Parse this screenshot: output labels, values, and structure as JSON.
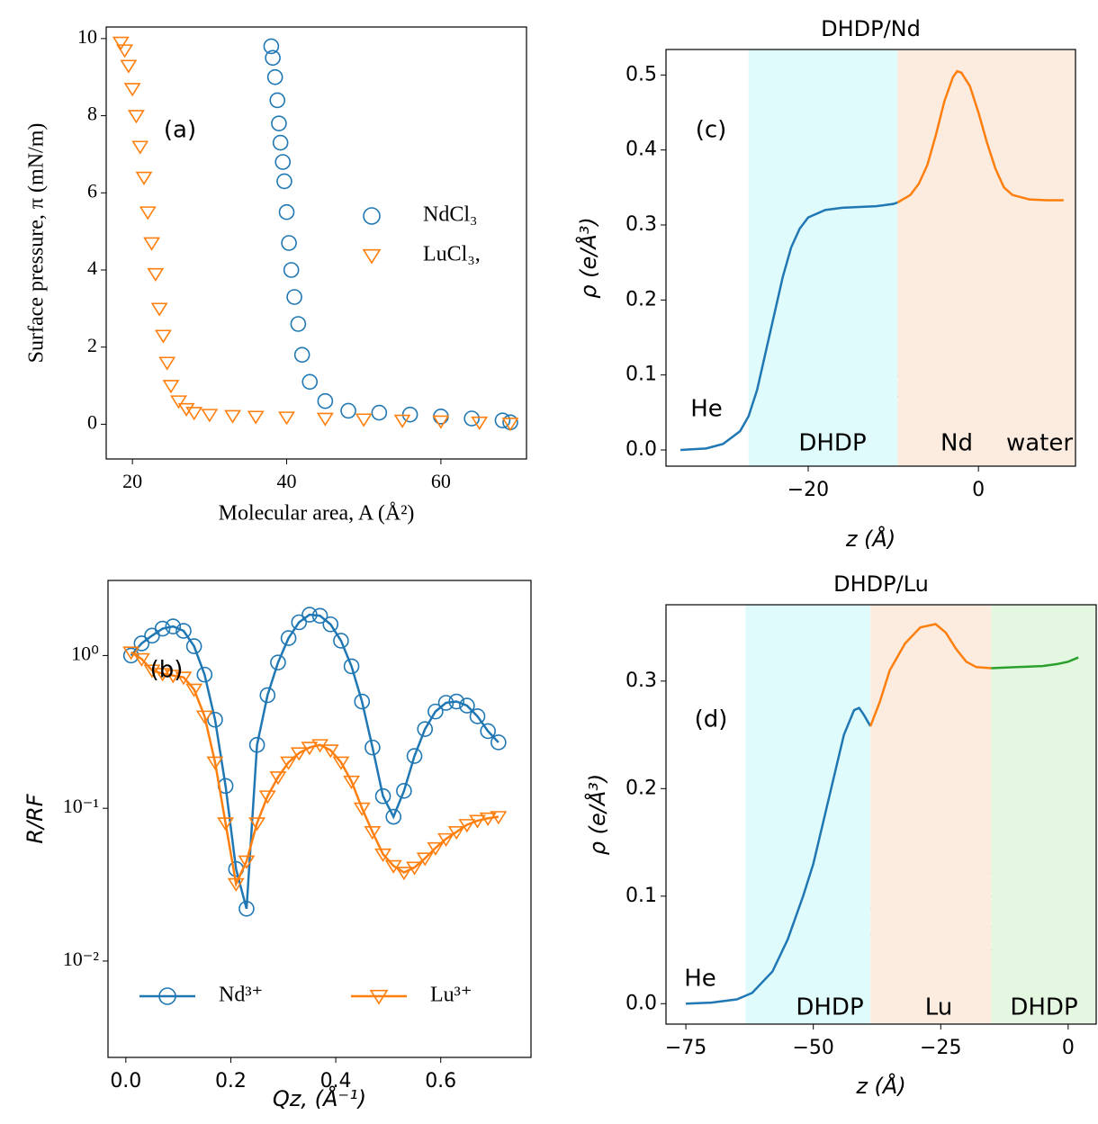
{
  "chart_data": [
    {
      "type": "scatter",
      "xlabel": "Molecular area, A (Å²)",
      "ylabel": "Surface pressure, π (mN/m)",
      "annotations": [
        "(a)"
      ],
      "xlim": [
        16.6,
        71.1
      ],
      "ylim": [
        -0.9,
        10.3
      ],
      "xticks": [
        20,
        40,
        60
      ],
      "yticks": [
        0,
        2,
        4,
        6,
        8,
        10
      ],
      "legend": "center right",
      "series": [
        {
          "name": "NdCl₃",
          "color": "#1f77b4",
          "marker": "o",
          "x": [
            38,
            38.2,
            38.5,
            38.8,
            39,
            39.2,
            39.5,
            39.7,
            40,
            40.3,
            40.6,
            41,
            41.5,
            42,
            43,
            45,
            48,
            52,
            56,
            60,
            64,
            68,
            69
          ],
          "values": [
            9.8,
            9.5,
            9,
            8.4,
            7.8,
            7.3,
            6.8,
            6.3,
            5.5,
            4.7,
            4,
            3.3,
            2.6,
            1.8,
            1.1,
            0.6,
            0.35,
            0.3,
            0.25,
            0.2,
            0.15,
            0.1,
            0.05
          ]
        },
        {
          "name": "LuCl₃,",
          "color": "#ff7f0e",
          "marker": "v",
          "x": [
            18.5,
            19,
            19.5,
            20,
            20.5,
            21,
            21.5,
            22,
            22.5,
            23,
            23.5,
            24,
            24.5,
            25,
            26,
            27,
            28,
            30,
            33,
            36,
            40,
            45,
            50,
            55,
            60,
            65,
            69
          ],
          "values": [
            9.9,
            9.7,
            9.3,
            8.7,
            8,
            7.2,
            6.4,
            5.5,
            4.7,
            3.9,
            3,
            2.3,
            1.6,
            1,
            0.6,
            0.4,
            0.3,
            0.25,
            0.22,
            0.2,
            0.18,
            0.15,
            0.13,
            0.1,
            0.08,
            0.05,
            0.02
          ]
        }
      ]
    },
    {
      "type": "line",
      "xlabel": "Qz, (Å⁻¹)",
      "ylabel": "R/RF",
      "annotations": [
        "(b)"
      ],
      "yscale": "log",
      "xlim": [
        -0.034,
        0.772
      ],
      "ylim": [
        0.00234,
        3.1
      ],
      "xticks": [
        {
          "value": 0,
          "label": "0.0"
        },
        0.2,
        0.4,
        0.6
      ],
      "yticks": [
        {
          "value": 0.01,
          "label": "10⁻²"
        },
        {
          "value": 0.1,
          "label": "10⁻¹"
        },
        {
          "value": 1,
          "label": "10⁰"
        }
      ],
      "legend": "lower center",
      "x": [
        0.01,
        0.03,
        0.05,
        0.07,
        0.09,
        0.11,
        0.13,
        0.15,
        0.17,
        0.19,
        0.21,
        0.23,
        0.25,
        0.27,
        0.29,
        0.31,
        0.33,
        0.35,
        0.37,
        0.39,
        0.41,
        0.43,
        0.45,
        0.47,
        0.49,
        0.51,
        0.53,
        0.55,
        0.57,
        0.59,
        0.61,
        0.63,
        0.65,
        0.67,
        0.69,
        0.71
      ],
      "series": [
        {
          "name": "Nd³⁺",
          "color": "#1f77b4",
          "marker": "o",
          "values": [
            1.0,
            1.2,
            1.35,
            1.5,
            1.55,
            1.45,
            1.15,
            0.75,
            0.38,
            0.14,
            0.04,
            0.022,
            0.26,
            0.55,
            0.9,
            1.3,
            1.65,
            1.85,
            1.82,
            1.6,
            1.25,
            0.85,
            0.5,
            0.25,
            0.12,
            0.088,
            0.13,
            0.22,
            0.33,
            0.43,
            0.49,
            0.5,
            0.47,
            0.4,
            0.32,
            0.27
          ]
        },
        {
          "name": "Lu³⁺",
          "color": "#ff7f0e",
          "marker": "v",
          "values": [
            1.05,
            0.95,
            0.8,
            0.76,
            0.74,
            0.72,
            0.6,
            0.4,
            0.2,
            0.08,
            0.032,
            0.045,
            0.08,
            0.12,
            0.16,
            0.2,
            0.23,
            0.25,
            0.26,
            0.24,
            0.2,
            0.15,
            0.1,
            0.07,
            0.05,
            0.042,
            0.038,
            0.041,
            0.047,
            0.055,
            0.063,
            0.07,
            0.078,
            0.083,
            0.086,
            0.088
          ]
        }
      ]
    },
    {
      "type": "line",
      "title": "DHDP/Nd",
      "xlabel": "z (Å)",
      "ylabel": "ρ (e/Å³)",
      "annotations": [
        "(c)",
        "He",
        "DHDP",
        "Nd",
        "water"
      ],
      "xlim": [
        -36.7,
        11.4
      ],
      "ylim": [
        -0.0216,
        0.534
      ],
      "xticks": [
        {
          "value": -20,
          "label": "−20"
        },
        0
      ],
      "yticks": [
        {
          "value": 0,
          "label": "0.0"
        },
        0.1,
        0.2,
        0.3,
        0.4,
        0.5
      ],
      "spans": [
        {
          "range": [
            -27,
            -9.5
          ],
          "color": "#e0fbfb"
        },
        {
          "range": [
            -9.5,
            11.4
          ],
          "color": "#fcece0"
        }
      ],
      "series": [
        {
          "color": "#1f77b4",
          "x": [
            -35,
            -32,
            -30,
            -28,
            -27,
            -26,
            -25,
            -24,
            -23,
            -22,
            -21,
            -20,
            -18,
            -16,
            -14,
            -12,
            -10,
            -9.5
          ],
          "values": [
            0,
            0.002,
            0.008,
            0.025,
            0.045,
            0.08,
            0.13,
            0.18,
            0.23,
            0.27,
            0.295,
            0.31,
            0.32,
            0.323,
            0.324,
            0.325,
            0.328,
            0.33
          ]
        },
        {
          "color": "#ff7f0e",
          "x": [
            -9.5,
            -8,
            -7,
            -6,
            -5,
            -4,
            -3,
            -2.5,
            -2,
            -1,
            0,
            1,
            2,
            3,
            4,
            6,
            8,
            10
          ],
          "values": [
            0.33,
            0.34,
            0.355,
            0.38,
            0.42,
            0.465,
            0.497,
            0.505,
            0.503,
            0.485,
            0.45,
            0.41,
            0.375,
            0.35,
            0.34,
            0.334,
            0.333,
            0.333
          ]
        }
      ]
    },
    {
      "type": "line",
      "title": "DHDP/Lu",
      "xlabel": "z (Å)",
      "ylabel": "ρ (e/Å³)",
      "annotations": [
        "(d)",
        "He",
        "DHDP",
        "Lu",
        "DHDP"
      ],
      "xlim": [
        -78.9,
        5.5
      ],
      "ylim": [
        -0.019,
        0.371
      ],
      "xticks": [
        {
          "value": -75,
          "label": "−75"
        },
        {
          "value": -50,
          "label": "−50"
        },
        {
          "value": -25,
          "label": "−25"
        },
        0
      ],
      "yticks": [
        {
          "value": 0,
          "label": "0.0"
        },
        0.1,
        0.2,
        0.3
      ],
      "spans": [
        {
          "range": [
            -63.3,
            -38.8
          ],
          "color": "#e0fbfb"
        },
        {
          "range": [
            -38.8,
            -15.1
          ],
          "color": "#fcece0"
        },
        {
          "range": [
            -15.1,
            5.5
          ],
          "color": "#e4f7e0"
        }
      ],
      "series": [
        {
          "color": "#1f77b4",
          "x": [
            -75,
            -70,
            -65,
            -62,
            -58,
            -55,
            -52,
            -50,
            -48,
            -46,
            -44,
            -42,
            -41,
            -40,
            -38.8
          ],
          "values": [
            0,
            0.001,
            0.004,
            0.01,
            0.03,
            0.06,
            0.1,
            0.13,
            0.17,
            0.21,
            0.25,
            0.273,
            0.275,
            0.268,
            0.258
          ]
        },
        {
          "color": "#ff7f0e",
          "x": [
            -38.8,
            -37,
            -35,
            -32,
            -29,
            -26,
            -24,
            -22,
            -20,
            -18,
            -15.1
          ],
          "values": [
            0.258,
            0.28,
            0.31,
            0.335,
            0.35,
            0.353,
            0.345,
            0.33,
            0.318,
            0.313,
            0.312
          ]
        },
        {
          "color": "#2ca02c",
          "x": [
            -15.1,
            -10,
            -5,
            -2,
            0,
            2
          ],
          "values": [
            0.312,
            0.313,
            0.314,
            0.316,
            0.318,
            0.322
          ]
        }
      ]
    }
  ]
}
